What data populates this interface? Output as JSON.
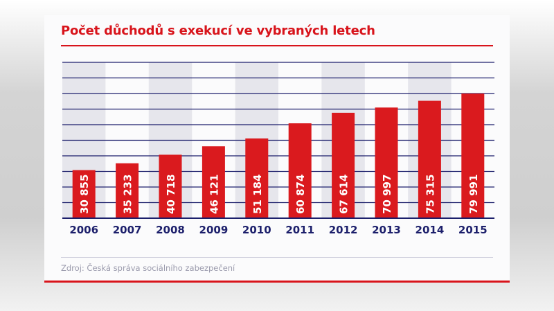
{
  "colors": {
    "bar": "#da1a1e",
    "grid": "#1c1f6b",
    "stripe": "#e6e6ec",
    "title": "#d8141b",
    "year": "#1c1f6b"
  },
  "chart_data": {
    "type": "bar",
    "title": "Počet důchodů s exekucí ve vybraných letech",
    "categories": [
      "2006",
      "2007",
      "2008",
      "2009",
      "2010",
      "2011",
      "2012",
      "2013",
      "2014",
      "2015"
    ],
    "values": [
      30855,
      35233,
      40718,
      46121,
      51184,
      60874,
      67614,
      70997,
      75315,
      79991
    ],
    "data_labels": [
      "30 855",
      "35 233",
      "40 718",
      "46 121",
      "51 184",
      "60 874",
      "67 614",
      "70 997",
      "75 315",
      "79 991"
    ],
    "ylim": [
      0,
      100000
    ],
    "grid": true,
    "grid_step": 10000,
    "source": "Zdroj: Česká správa sociálního zabezpečení"
  }
}
